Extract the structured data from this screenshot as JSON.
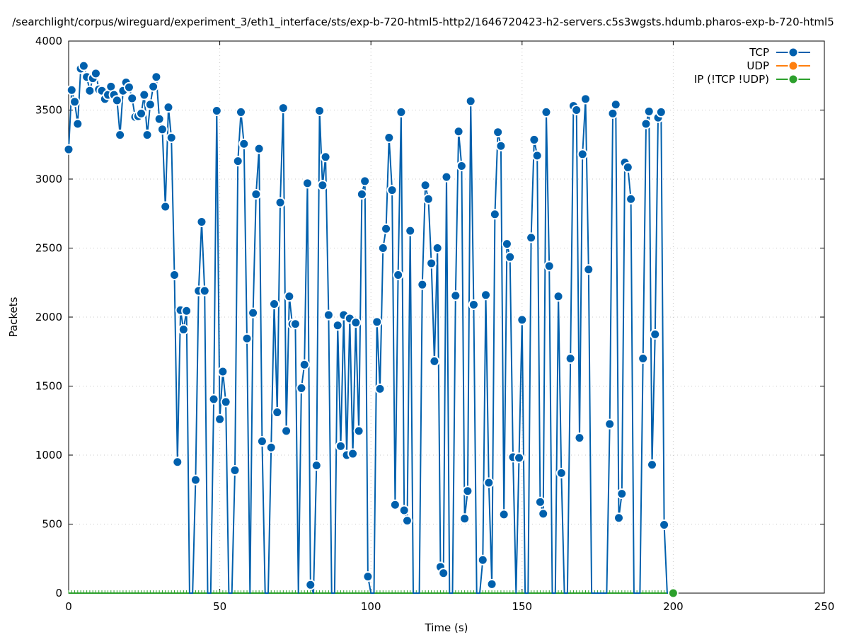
{
  "chart_data": {
    "type": "line",
    "title": "/searchlight/corpus/wireguard/experiment_3/eth1_interface/sts/exp-b-720-html5-http2/1646720423-h2-servers.c5s3wgsts.hdumb.pharos-exp-b-720-html5",
    "xlabel": "Time (s)",
    "ylabel": "Packets",
    "xlim": [
      0,
      250
    ],
    "ylim": [
      0,
      4000
    ],
    "xticks": [
      "0",
      "50",
      "100",
      "150",
      "200",
      "250"
    ],
    "yticks": [
      "0",
      "500",
      "1000",
      "1500",
      "2000",
      "2500",
      "3000",
      "3500",
      "4000"
    ],
    "grid": true,
    "legend_position": "top-right",
    "series": [
      {
        "name": "TCP",
        "color": "#0060ad",
        "values": [
          3215,
          3645,
          3560,
          3400,
          3800,
          3820,
          3740,
          3640,
          3730,
          3765,
          3650,
          3640,
          3580,
          3610,
          3670,
          3610,
          3570,
          3320,
          3640,
          3700,
          3665,
          3585,
          3450,
          3455,
          3475,
          3610,
          3320,
          3540,
          3670,
          3740,
          3435,
          3360,
          2800,
          3520,
          3300,
          2305,
          950,
          2050,
          1910,
          2045,
          0,
          0,
          820,
          2190,
          2690,
          2190,
          0,
          0,
          1405,
          3495,
          1260,
          1605,
          1385,
          0,
          0,
          890,
          3130,
          3485,
          3255,
          1845,
          0,
          2030,
          2890,
          3220,
          1100,
          0,
          0,
          1055,
          2095,
          1310,
          2830,
          3515,
          1175,
          2150,
          1950,
          1950,
          0,
          1485,
          1655,
          2970,
          60,
          0,
          925,
          3495,
          2955,
          3160,
          2015,
          0,
          0,
          1940,
          1065,
          2015,
          1000,
          1990,
          1010,
          1960,
          1175,
          2890,
          2985,
          120,
          0,
          0,
          1965,
          1480,
          2500,
          2640,
          3300,
          2920,
          640,
          2305,
          3485,
          600,
          525,
          2625,
          0,
          0,
          0,
          2235,
          2955,
          2855,
          2390,
          1680,
          2500,
          190,
          145,
          3015,
          0,
          0,
          2155,
          3345,
          3095,
          540,
          740,
          3565,
          2090,
          0,
          0,
          240,
          2160,
          800,
          65,
          2745,
          3340,
          3240,
          570,
          2530,
          2435,
          985,
          0,
          980,
          1980,
          0,
          0,
          2575,
          3285,
          3170,
          660,
          575,
          3485,
          2370,
          0,
          0,
          2150,
          870,
          0,
          0,
          1700,
          3530,
          3500,
          1125,
          3180,
          3580,
          2345,
          0,
          0,
          0,
          0,
          0,
          0,
          1225,
          3475,
          3540,
          545,
          720,
          3120,
          3085,
          2855,
          0,
          0,
          0,
          1700,
          3400,
          3490,
          930,
          1875,
          3445,
          3485,
          495,
          0
        ]
      },
      {
        "name": "UDP",
        "color": "#ff7f0e",
        "values": []
      },
      {
        "name": "IP (!TCP  !UDP)",
        "color": "#2ca02c",
        "constant_value": 0,
        "last_x": 200
      }
    ]
  }
}
